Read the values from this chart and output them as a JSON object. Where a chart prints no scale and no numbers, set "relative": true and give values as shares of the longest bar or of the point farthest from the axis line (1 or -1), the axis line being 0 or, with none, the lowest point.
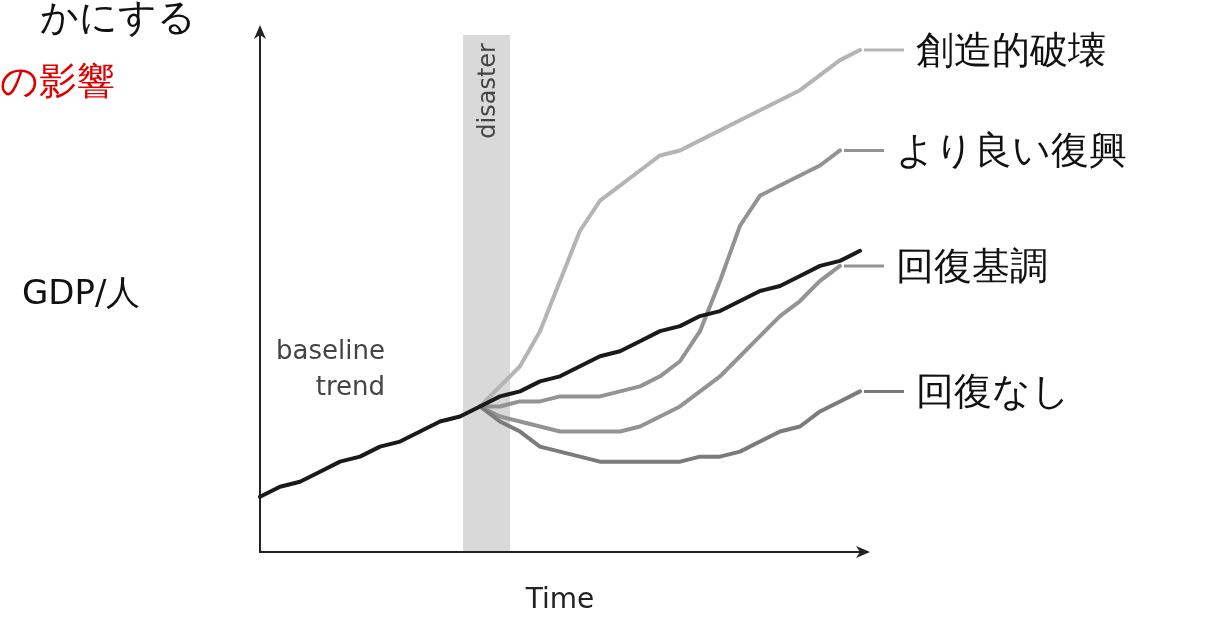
{
  "chart_data": {
    "type": "line",
    "relative": true,
    "xlabel": "Time",
    "ylabel": "GDP/人",
    "annotations": [
      "かにする",
      "の影響",
      "disaster"
    ],
    "categories": [
      null,
      null,
      null,
      null,
      null,
      null,
      null,
      null,
      null,
      null,
      null,
      null,
      null,
      null,
      null,
      null,
      null,
      null,
      null,
      null,
      null,
      null,
      null,
      null,
      null,
      null,
      null,
      null,
      null,
      null,
      null
    ],
    "grid": false,
    "legend": "right",
    "line_style": "solid",
    "series": [
      {
        "name": "創造的破壊",
        "color": "#b4b4b4",
        "values": [
          null,
          null,
          null,
          null,
          null,
          null,
          null,
          null,
          null,
          null,
          null,
          0.29,
          0.33,
          0.37,
          0.44,
          0.54,
          0.64,
          0.7,
          0.73,
          0.76,
          0.79,
          0.8,
          0.82,
          0.84,
          0.86,
          0.88,
          0.9,
          0.92,
          0.95,
          0.98,
          1.0
        ]
      },
      {
        "name": "より良い復興",
        "color": "#939393",
        "values": [
          null,
          null,
          null,
          null,
          null,
          null,
          null,
          null,
          null,
          null,
          null,
          0.29,
          0.29,
          0.3,
          0.3,
          0.31,
          0.31,
          0.31,
          0.32,
          0.33,
          0.35,
          0.38,
          0.44,
          0.54,
          0.65,
          0.71,
          0.73,
          0.75,
          0.77,
          0.8,
          null
        ]
      },
      {
        "name": "回復基調",
        "color": "#939393",
        "values": [
          null,
          null,
          null,
          null,
          null,
          null,
          null,
          null,
          null,
          null,
          null,
          0.29,
          0.27,
          0.26,
          0.25,
          0.24,
          0.24,
          0.24,
          0.24,
          0.25,
          0.27,
          0.29,
          0.32,
          0.35,
          0.39,
          0.43,
          0.47,
          0.5,
          0.54,
          0.57,
          null
        ]
      },
      {
        "name": "回復なし",
        "color": "#7b7b7b",
        "values": [
          null,
          null,
          null,
          null,
          null,
          null,
          null,
          null,
          null,
          null,
          null,
          0.29,
          0.26,
          0.24,
          0.21,
          0.2,
          0.19,
          0.18,
          0.18,
          0.18,
          0.18,
          0.18,
          0.19,
          0.19,
          0.2,
          0.22,
          0.24,
          0.25,
          0.28,
          0.3,
          0.32
        ]
      },
      {
        "name": "baseline trend",
        "color": "#1a1a1a",
        "values": [
          0.11,
          0.13,
          0.14,
          0.16,
          0.18,
          0.19,
          0.21,
          0.22,
          0.24,
          0.26,
          0.27,
          0.29,
          0.31,
          0.32,
          0.34,
          0.35,
          0.37,
          0.39,
          0.4,
          0.42,
          0.44,
          0.45,
          0.47,
          0.48,
          0.5,
          0.52,
          0.53,
          0.55,
          0.57,
          0.58,
          0.6
        ]
      }
    ]
  }
}
